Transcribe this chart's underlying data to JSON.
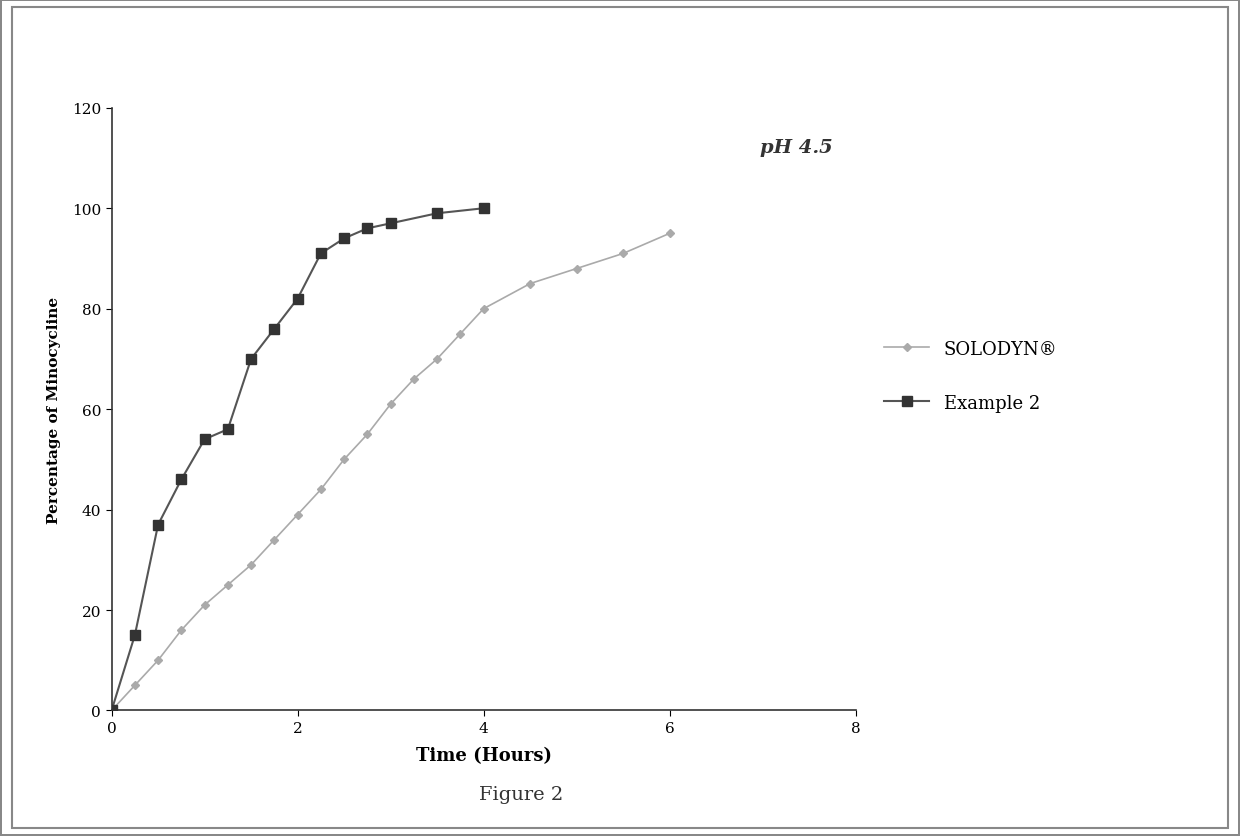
{
  "solodyn_x": [
    0,
    0.25,
    0.5,
    0.75,
    1.0,
    1.25,
    1.5,
    1.75,
    2.0,
    2.25,
    2.5,
    2.75,
    3.0,
    3.25,
    3.5,
    3.75,
    4.0,
    4.5,
    5.0,
    5.5,
    6.0
  ],
  "solodyn_y": [
    0,
    5,
    10,
    16,
    21,
    25,
    29,
    34,
    39,
    44,
    50,
    55,
    61,
    66,
    70,
    75,
    80,
    85,
    88,
    91,
    95
  ],
  "example2_x": [
    0,
    0.25,
    0.5,
    0.75,
    1.0,
    1.25,
    1.5,
    1.75,
    2.0,
    2.25,
    2.5,
    2.75,
    3.0,
    3.5,
    4.0
  ],
  "example2_y": [
    0,
    15,
    37,
    46,
    54,
    56,
    70,
    76,
    82,
    91,
    94,
    96,
    97,
    99,
    100
  ],
  "xlabel": "Time (Hours)",
  "ylabel": "Percentage of Minocycline",
  "annotation": "pH 4.5",
  "figure_caption": "Figure 2",
  "legend_solodyn": "SOLODYN®",
  "legend_example2": "Example 2",
  "xlim": [
    0,
    8
  ],
  "ylim": [
    0,
    120
  ],
  "xticks": [
    0,
    2,
    4,
    6,
    8
  ],
  "yticks": [
    0,
    20,
    40,
    60,
    80,
    100,
    120
  ],
  "line_color_solodyn": "#aaaaaa",
  "line_color_example2": "#555555",
  "marker_color_solodyn": "#aaaaaa",
  "marker_color_example2": "#333333",
  "bg_color": "#ffffff",
  "plot_bg_color": "#ffffff",
  "border_color": "#888888"
}
